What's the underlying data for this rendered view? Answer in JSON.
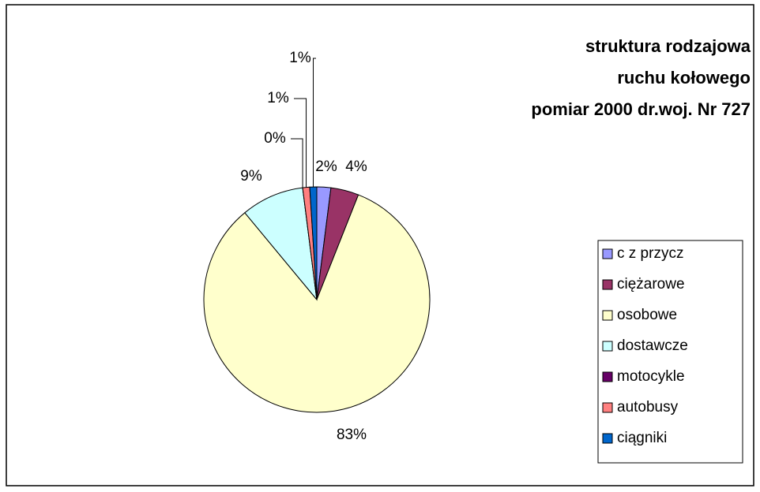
{
  "chart_data": {
    "type": "pie",
    "title": [
      "struktura rodzajowa",
      "ruchu kołowego",
      "pomiar 2000 dr.woj. Nr 727"
    ],
    "categories": [
      "c z przycz",
      "ciężarowe",
      "osobowe",
      "dostawcze",
      "motocykle",
      "autobusy",
      "ciągniki"
    ],
    "values": [
      2,
      4,
      83,
      9,
      0,
      1,
      1
    ],
    "value_labels": [
      "2%",
      "4%",
      "83%",
      "9%",
      "0%",
      "1%",
      "1%"
    ],
    "colors": [
      "#9999ff",
      "#993366",
      "#ffffcc",
      "#ccffff",
      "#660066",
      "#ff8080",
      "#0066cc"
    ],
    "legend": "right"
  }
}
